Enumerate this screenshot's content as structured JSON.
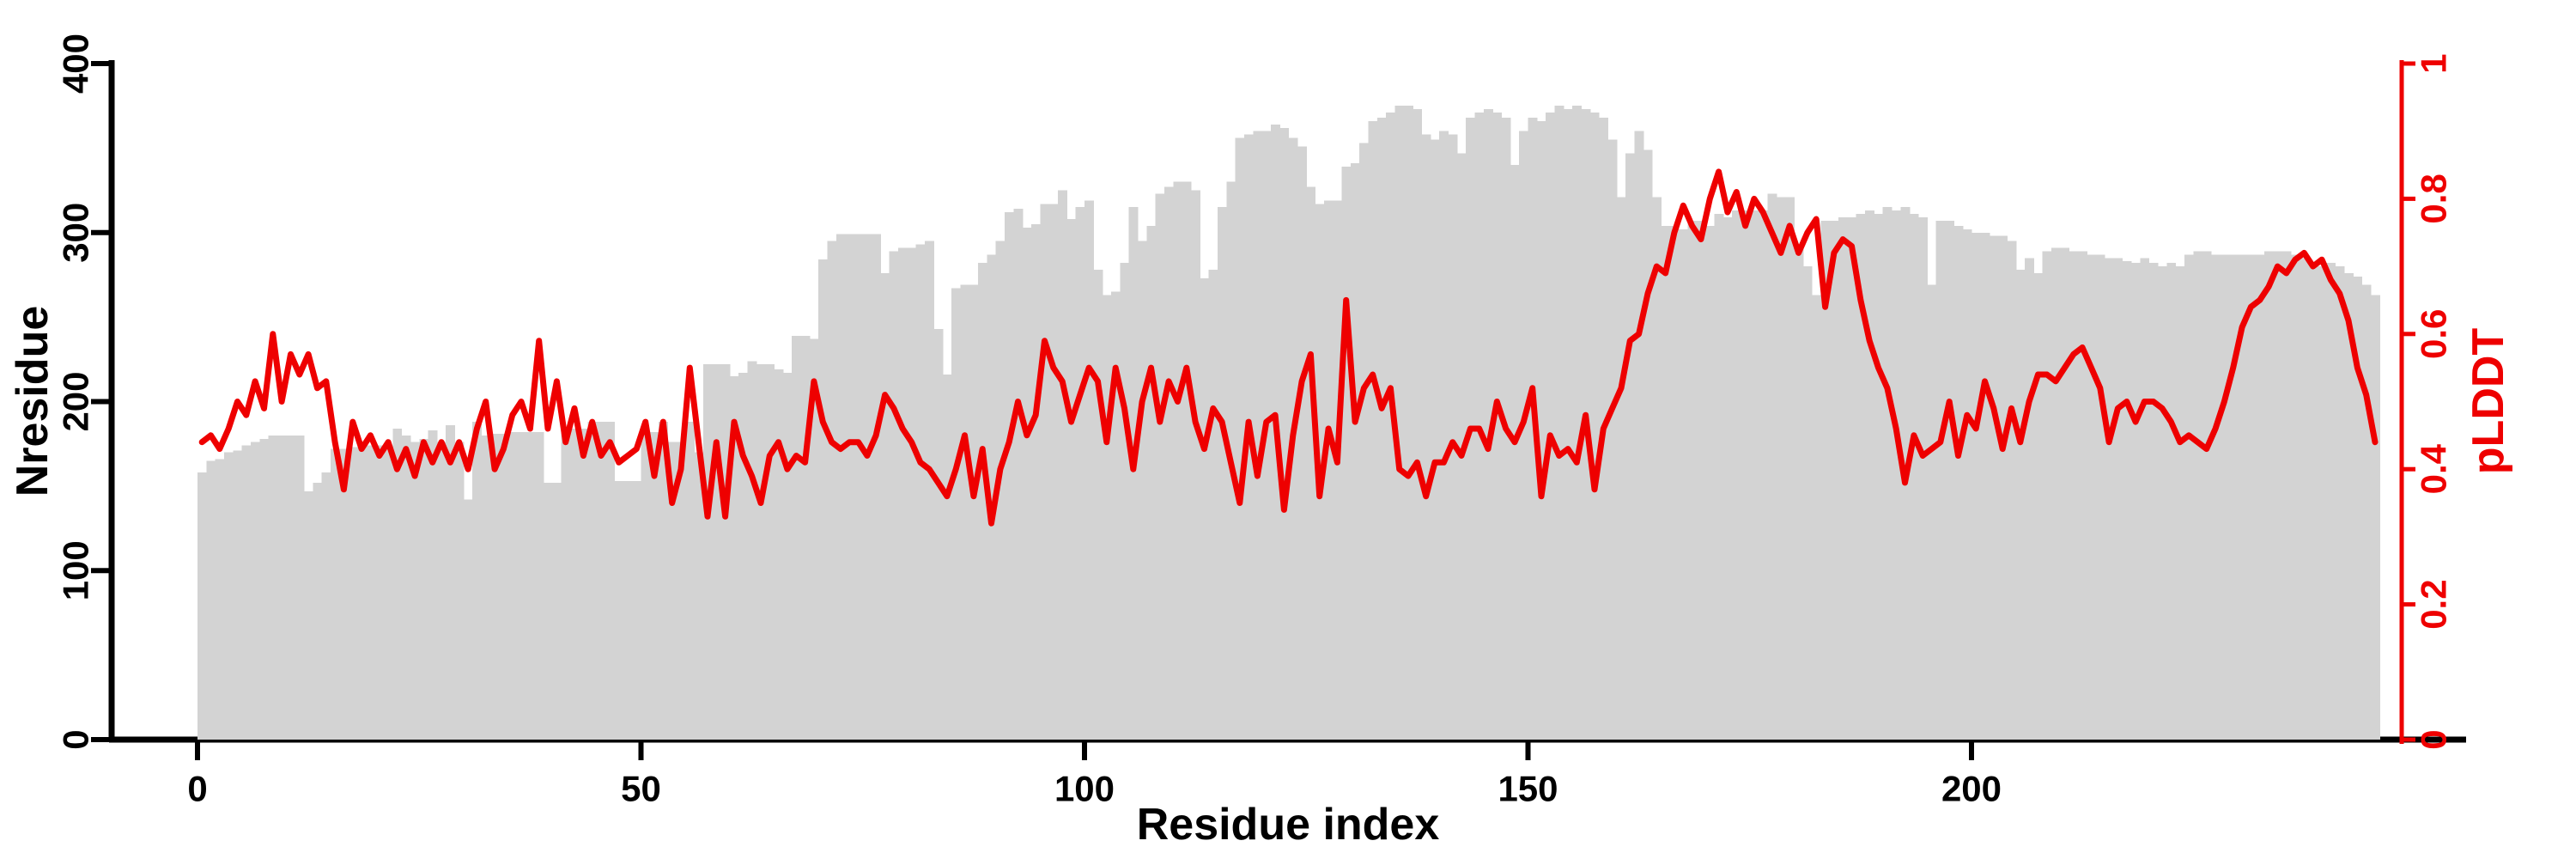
{
  "figure": {
    "background_color": "#ffffff",
    "bar_color": "#d3d3d3",
    "line_color": "#ee0000",
    "left_axis_color": "#000000",
    "right_axis_color": "#ee0000"
  },
  "chart_data": {
    "type": "bar",
    "title": "",
    "xlabel": "Residue index",
    "ylabel_left": "Nresidue",
    "ylabel_right": "pLDDT",
    "x_start": 0,
    "x_end": 245,
    "xlim": [
      0,
      246
    ],
    "ylim_left": [
      0,
      400
    ],
    "ylim_right": [
      0,
      1
    ],
    "grid": false,
    "legend": "none",
    "x_axis": {
      "tick_values": [
        0,
        50,
        100,
        150,
        200
      ],
      "tick_labels": [
        "0",
        "50",
        "100",
        "150",
        "200"
      ]
    },
    "left_axis": {
      "tick_values": [
        0,
        100,
        200,
        300,
        400
      ],
      "tick_labels": [
        "0",
        "100",
        "200",
        "300",
        "400"
      ]
    },
    "right_axis": {
      "tick_values": [
        0,
        0.2,
        0.4,
        0.6,
        0.8,
        1
      ],
      "tick_labels": [
        "0",
        "0.2",
        "0.4",
        "0.6",
        "0.8",
        "1"
      ]
    },
    "series": [
      {
        "name": "Nresidue",
        "type": "bar",
        "axis": "left",
        "color": "#d3d3d3",
        "values": [
          158,
          165,
          166,
          170,
          171,
          174,
          176,
          178,
          180,
          180,
          180,
          180,
          147,
          152,
          158,
          172,
          172,
          173,
          173,
          174,
          174,
          174,
          184,
          180,
          176,
          178,
          183,
          176,
          186,
          176,
          142,
          188,
          180,
          181,
          181,
          182,
          182,
          182,
          182,
          152,
          152,
          184,
          184,
          184,
          188,
          188,
          188,
          153,
          153,
          153,
          182,
          182,
          188,
          176,
          176,
          188,
          170,
          222,
          222,
          222,
          215,
          217,
          224,
          222,
          222,
          219,
          217,
          239,
          239,
          237,
          284,
          295,
          299,
          299,
          299,
          299,
          299,
          276,
          289,
          291,
          291,
          293,
          295,
          243,
          216,
          267,
          269,
          269,
          282,
          287,
          295,
          312,
          314,
          303,
          305,
          317,
          317,
          325,
          308,
          315,
          319,
          278,
          263,
          265,
          282,
          315,
          295,
          304,
          323,
          327,
          330,
          330,
          325,
          273,
          278,
          315,
          330,
          356,
          358,
          360,
          360,
          364,
          362,
          356,
          351,
          327,
          317,
          319,
          319,
          339,
          341,
          353,
          366,
          368,
          371,
          375,
          375,
          373,
          358,
          355,
          360,
          358,
          347,
          368,
          371,
          373,
          371,
          368,
          340,
          360,
          368,
          366,
          371,
          375,
          373,
          375,
          373,
          371,
          368,
          355,
          321,
          347,
          360,
          349,
          321,
          304,
          304,
          302,
          307,
          307,
          304,
          311,
          309,
          313,
          313,
          313,
          313,
          323,
          321,
          321,
          291,
          280,
          263,
          307,
          307,
          309,
          309,
          311,
          313,
          311,
          315,
          313,
          315,
          311,
          309,
          269,
          307,
          307,
          304,
          302,
          300,
          300,
          298,
          298,
          295,
          278,
          285,
          276,
          289,
          291,
          291,
          289,
          289,
          287,
          287,
          285,
          285,
          283,
          282,
          285,
          282,
          280,
          282,
          280,
          287,
          289,
          289,
          287,
          287,
          287,
          287,
          287,
          287,
          289,
          289,
          289,
          287,
          285,
          282,
          280,
          282,
          280,
          276,
          274,
          269,
          263
        ]
      },
      {
        "name": "pLDDT",
        "type": "line",
        "axis": "right",
        "color": "#ee0000",
        "values": [
          0.44,
          0.45,
          0.43,
          0.46,
          0.5,
          0.48,
          0.53,
          0.49,
          0.6,
          0.5,
          0.57,
          0.54,
          0.57,
          0.52,
          0.53,
          0.44,
          0.37,
          0.47,
          0.43,
          0.45,
          0.42,
          0.44,
          0.4,
          0.43,
          0.39,
          0.44,
          0.41,
          0.44,
          0.41,
          0.44,
          0.4,
          0.46,
          0.5,
          0.4,
          0.43,
          0.48,
          0.5,
          0.46,
          0.59,
          0.46,
          0.53,
          0.44,
          0.49,
          0.42,
          0.47,
          0.42,
          0.44,
          0.41,
          0.42,
          0.43,
          0.47,
          0.39,
          0.47,
          0.35,
          0.4,
          0.55,
          0.44,
          0.33,
          0.44,
          0.33,
          0.47,
          0.42,
          0.39,
          0.35,
          0.42,
          0.44,
          0.4,
          0.42,
          0.41,
          0.53,
          0.47,
          0.44,
          0.43,
          0.44,
          0.44,
          0.42,
          0.45,
          0.51,
          0.49,
          0.46,
          0.44,
          0.41,
          0.4,
          0.38,
          0.36,
          0.4,
          0.45,
          0.36,
          0.43,
          0.32,
          0.4,
          0.44,
          0.5,
          0.45,
          0.48,
          0.59,
          0.55,
          0.53,
          0.47,
          0.51,
          0.55,
          0.53,
          0.44,
          0.55,
          0.49,
          0.4,
          0.5,
          0.55,
          0.47,
          0.53,
          0.5,
          0.55,
          0.47,
          0.43,
          0.49,
          0.47,
          0.41,
          0.35,
          0.47,
          0.39,
          0.47,
          0.48,
          0.34,
          0.45,
          0.53,
          0.57,
          0.36,
          0.46,
          0.41,
          0.65,
          0.47,
          0.52,
          0.54,
          0.49,
          0.52,
          0.4,
          0.39,
          0.41,
          0.36,
          0.41,
          0.41,
          0.44,
          0.42,
          0.46,
          0.46,
          0.43,
          0.5,
          0.46,
          0.44,
          0.47,
          0.52,
          0.36,
          0.45,
          0.42,
          0.43,
          0.41,
          0.48,
          0.37,
          0.46,
          0.49,
          0.52,
          0.59,
          0.6,
          0.66,
          0.7,
          0.69,
          0.75,
          0.79,
          0.76,
          0.74,
          0.8,
          0.84,
          0.78,
          0.81,
          0.76,
          0.8,
          0.78,
          0.75,
          0.72,
          0.76,
          0.72,
          0.75,
          0.77,
          0.64,
          0.72,
          0.74,
          0.73,
          0.65,
          0.59,
          0.55,
          0.52,
          0.46,
          0.38,
          0.45,
          0.42,
          0.43,
          0.44,
          0.5,
          0.42,
          0.48,
          0.46,
          0.53,
          0.49,
          0.43,
          0.49,
          0.44,
          0.5,
          0.54,
          0.54,
          0.53,
          0.55,
          0.57,
          0.58,
          0.55,
          0.52,
          0.44,
          0.49,
          0.5,
          0.47,
          0.5,
          0.5,
          0.49,
          0.47,
          0.44,
          0.45,
          0.44,
          0.43,
          0.46,
          0.5,
          0.55,
          0.61,
          0.64,
          0.65,
          0.67,
          0.7,
          0.69,
          0.71,
          0.72,
          0.7,
          0.71,
          0.68,
          0.66,
          0.62,
          0.55,
          0.51,
          0.44
        ]
      }
    ]
  }
}
